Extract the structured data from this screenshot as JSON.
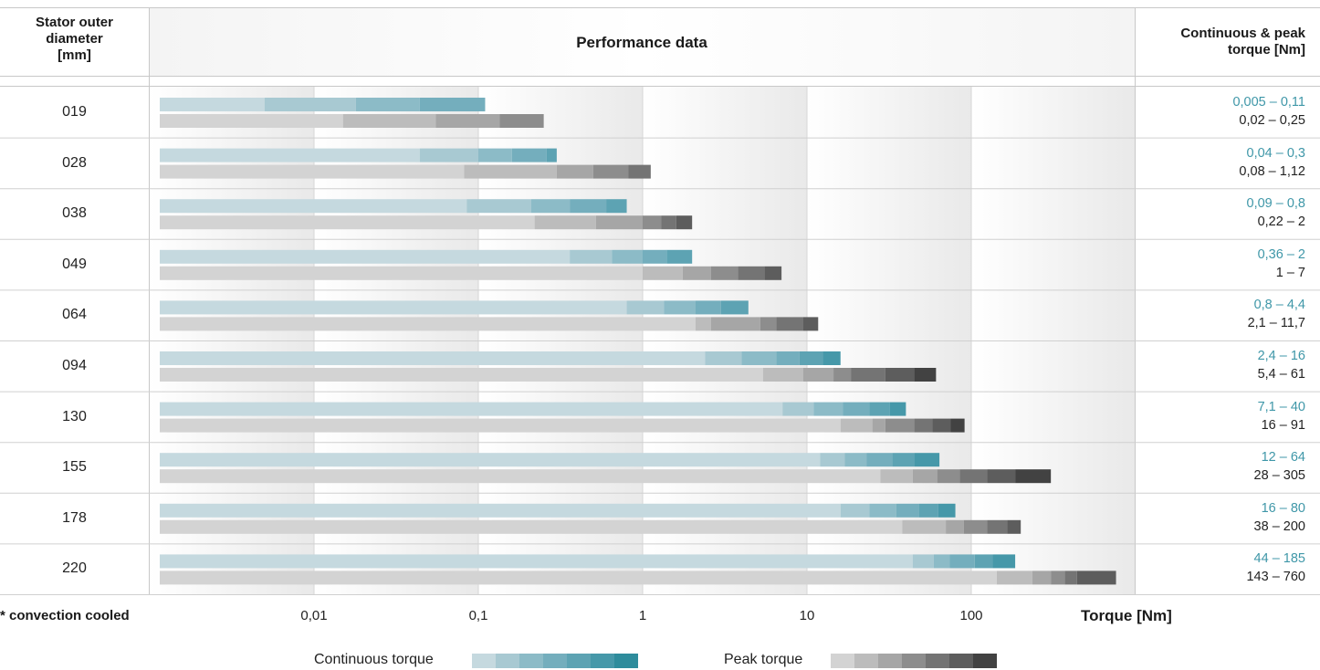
{
  "header": {
    "col1": [
      "Stator outer",
      "diameter",
      "[mm]"
    ],
    "col2": "Performance data",
    "col3": [
      "Continuous & peak",
      "torque [Nm]"
    ]
  },
  "footnote": "* convection cooled",
  "legend": {
    "continuous_label": "Continuous torque",
    "peak_label": "Peak torque"
  },
  "colors": {
    "continuous": [
      "#c5d9df",
      "#a8c9d2",
      "#8cbbc7",
      "#74aebd",
      "#5da3b3",
      "#4698a9",
      "#2e8c9c"
    ],
    "peak": [
      "#d3d3d3",
      "#bcbcbc",
      "#a6a6a6",
      "#8d8d8d",
      "#747474",
      "#5d5d5d",
      "#424242"
    ],
    "continuous_text": "#3f97a8"
  },
  "chart_data": {
    "type": "bar",
    "orientation": "horizontal",
    "x_scale": "log",
    "xlim": [
      0.001,
      1000
    ],
    "xlabel": "Torque [Nm]",
    "x_ticks": [
      "0,01",
      "0,1",
      "1",
      "10",
      "100"
    ],
    "x_tick_values": [
      0.01,
      0.1,
      1,
      10,
      100
    ],
    "grid": true,
    "rows": [
      {
        "label": "019",
        "continuous_text": "0,005 – 0,11",
        "peak_text": "0,02 – 0,25",
        "continuous": [
          0.005,
          0.018,
          0.044,
          0.11
        ],
        "peak": [
          0.015,
          0.055,
          0.135,
          0.25
        ]
      },
      {
        "label": "028",
        "continuous_text": "0,04 – 0,3",
        "peak_text": "0,08 – 1,12",
        "continuous": [
          0.044,
          0.1,
          0.16,
          0.26,
          0.3
        ],
        "peak": [
          0.082,
          0.3,
          0.5,
          0.82,
          1.12
        ]
      },
      {
        "label": "038",
        "continuous_text": "0,09 – 0,8",
        "peak_text": "0,22 – 2",
        "continuous": [
          0.085,
          0.21,
          0.36,
          0.6,
          0.8
        ],
        "peak": [
          0.22,
          0.52,
          1.0,
          1.3,
          1.6,
          2.0
        ]
      },
      {
        "label": "049",
        "continuous_text": "0,36 – 2",
        "peak_text": "1 – 7",
        "continuous": [
          0.36,
          0.65,
          1.0,
          1.4,
          2.0
        ],
        "peak": [
          1.0,
          1.75,
          2.6,
          3.8,
          5.5,
          7.0
        ]
      },
      {
        "label": "064",
        "continuous_text": "0,8 – 4,4",
        "peak_text": "2,1 – 11,7",
        "continuous": [
          0.8,
          1.35,
          2.1,
          3.0,
          4.4
        ],
        "peak": [
          2.1,
          2.6,
          5.2,
          6.5,
          9.5,
          11.7
        ]
      },
      {
        "label": "094",
        "continuous_text": "2,4 – 16",
        "peak_text": "5,4 – 61",
        "continuous": [
          2.4,
          4.0,
          6.5,
          9.0,
          12.5,
          16.0
        ],
        "peak": [
          5.4,
          9.5,
          14.5,
          18.5,
          30.0,
          45.0,
          61.0
        ]
      },
      {
        "label": "130",
        "continuous_text": "7,1 – 40",
        "peak_text": "16 – 91",
        "continuous": [
          7.1,
          11.0,
          16.5,
          24.0,
          32.0,
          40.0
        ],
        "peak": [
          16.0,
          25.0,
          30.0,
          45.0,
          58.0,
          75.0,
          91.0
        ]
      },
      {
        "label": "155",
        "continuous_text": "12 – 64",
        "peak_text": "28 – 305",
        "continuous": [
          12.0,
          17.0,
          23.0,
          33.0,
          45.0,
          64.0
        ],
        "peak": [
          28.0,
          44.0,
          62.0,
          85.0,
          125.0,
          185.0,
          305.0
        ]
      },
      {
        "label": "178",
        "continuous_text": "16 – 80",
        "peak_text": "38 – 200",
        "continuous": [
          16.0,
          24.0,
          35.0,
          48.0,
          63.0,
          80.0
        ],
        "peak": [
          38.0,
          70.0,
          90.0,
          125.0,
          165.0,
          200.0
        ]
      },
      {
        "label": "220",
        "continuous_text": "44 – 185",
        "peak_text": "143 – 760",
        "continuous": [
          44.0,
          59.0,
          74.0,
          105.0,
          135.0,
          185.0
        ],
        "peak": [
          143.0,
          235.0,
          305.0,
          370.0,
          440.0,
          760.0
        ]
      }
    ]
  }
}
